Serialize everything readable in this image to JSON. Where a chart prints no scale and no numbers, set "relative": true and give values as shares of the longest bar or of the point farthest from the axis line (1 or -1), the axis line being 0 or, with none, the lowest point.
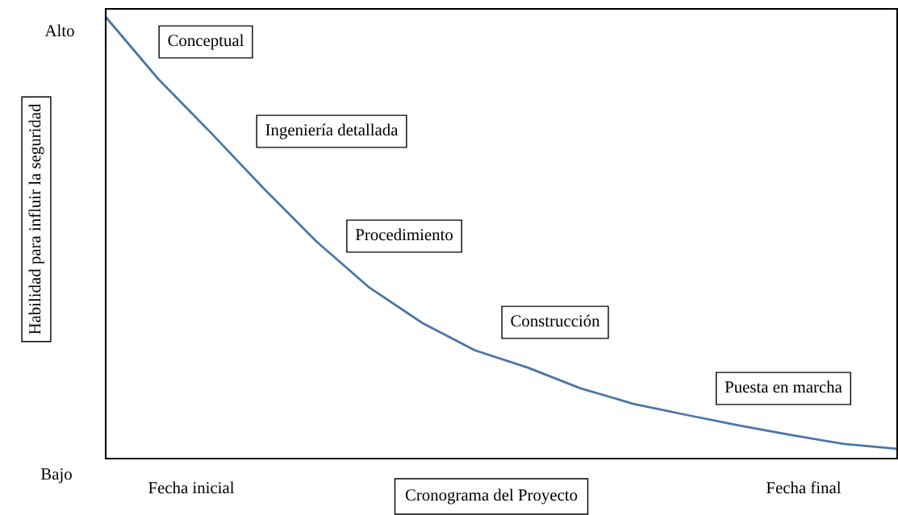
{
  "chart_data": {
    "type": "line",
    "relative": true,
    "tick_labels": false,
    "xlabel": "Cronograma del Proyecto",
    "ylabel": "Habilidad para influir la seguridad",
    "categories": [
      null,
      null,
      null,
      null,
      null,
      null,
      null,
      null,
      null,
      null,
      null,
      null,
      null,
      null,
      null,
      null
    ],
    "series": [
      {
        "color": "#4a76a8",
        "values": [
          1.0,
          0.859,
          0.737,
          0.611,
          0.491,
          0.387,
          0.307,
          0.245,
          0.206,
          0.159,
          0.124,
          0.099,
          0.075,
          0.053,
          0.033,
          0.022
        ]
      }
    ],
    "annotations": [
      "Conceptual",
      "Ingeniería detallada",
      "Procedimiento",
      "Construcción",
      "Puesta en marcha",
      "Alto",
      "Bajo",
      "Fecha inicial",
      "Fecha final"
    ]
  }
}
